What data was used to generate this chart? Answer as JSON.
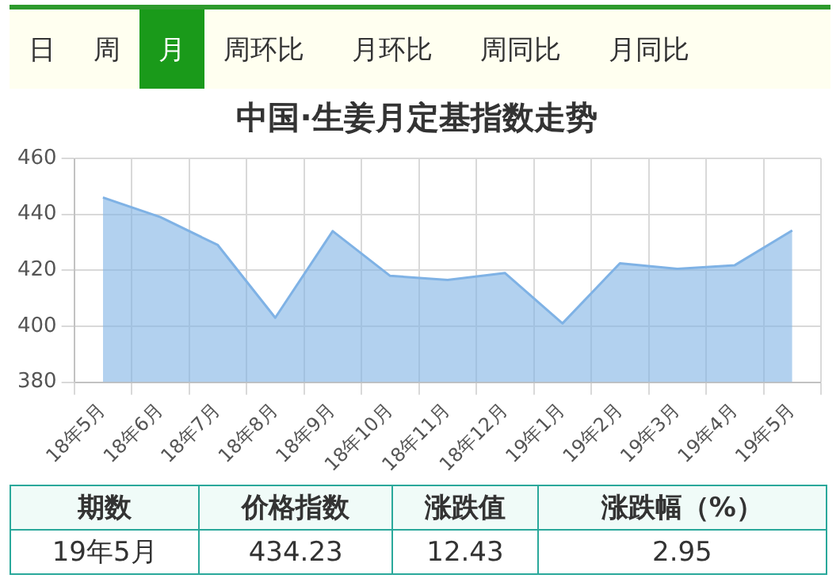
{
  "chart_data": {
    "type": "area",
    "title": "中国·生姜月定基指数走势",
    "categories": [
      "18年5月",
      "18年6月",
      "18年7月",
      "18年8月",
      "18年9月",
      "18年10月",
      "18年11月",
      "18年12月",
      "19年1月",
      "19年2月",
      "19年3月",
      "19年4月",
      "19年5月"
    ],
    "series": [
      {
        "color": "#7fb2e5",
        "values": [
          446,
          439,
          429,
          403,
          434,
          418,
          416.5,
          419,
          401,
          422.5,
          420.5,
          421.8,
          434.23
        ]
      }
    ],
    "ylim": [
      380,
      460
    ],
    "yticks": [
      380,
      400,
      420,
      440,
      460
    ],
    "grid": true,
    "legend": false,
    "marker": "none",
    "annotations": [
      "日",
      "周",
      "月",
      "周环比",
      "月环比",
      "周同比",
      "月同比",
      "期数",
      "价格指数",
      "涨跌值",
      "涨跌幅（%）",
      "19年5月",
      "434.23",
      "12.43",
      "2.95"
    ]
  }
}
